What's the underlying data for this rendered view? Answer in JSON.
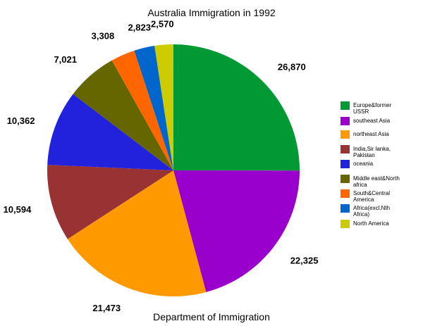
{
  "chart_data": {
    "type": "pie",
    "title": "Australia Immigration in 1992",
    "xlabel": "Department of Immigration",
    "legend_position": "right",
    "slices": [
      {
        "label": [
          "Europe&former",
          "USSR"
        ],
        "value": 26870,
        "value_label": "26,870",
        "color": "#009933"
      },
      {
        "label": [
          "southeast Asia"
        ],
        "value": 22325,
        "value_label": "22,325",
        "color": "#9900cc"
      },
      {
        "label": [
          "northeast Asia"
        ],
        "value": 21473,
        "value_label": "21,473",
        "color": "#ff9900"
      },
      {
        "label": [
          "India,Sir lanka,",
          "Pakistan"
        ],
        "value": 10594,
        "value_label": "10,594",
        "color": "#993333"
      },
      {
        "label": [
          "oceania"
        ],
        "value": 10362,
        "value_label": "10,362",
        "color": "#2222dd"
      },
      {
        "label": [
          "Middle east&North",
          "africa"
        ],
        "value": 7021,
        "value_label": "7,021",
        "color": "#666600"
      },
      {
        "label": [
          "South&Central",
          "America"
        ],
        "value": 3308,
        "value_label": "3,308",
        "color": "#ff6600"
      },
      {
        "label": [
          "Africa(excl.Nth",
          "Africa)"
        ],
        "value": 2823,
        "value_label": "2,823",
        "color": "#0066cc"
      },
      {
        "label": [
          "North America"
        ],
        "value": 2570,
        "value_label": "2,570",
        "color": "#cccc00"
      }
    ]
  }
}
